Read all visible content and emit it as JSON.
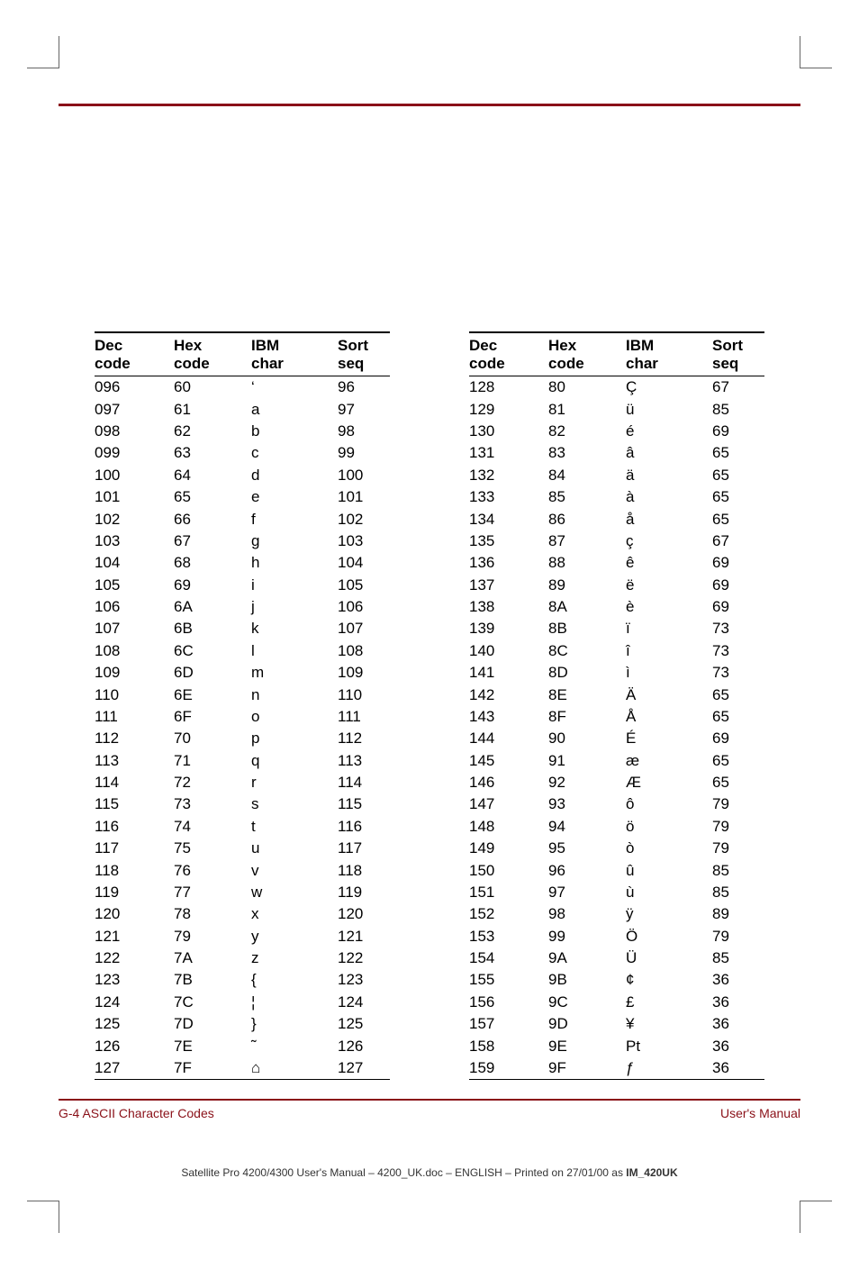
{
  "headers": {
    "dec": "Dec\ncode",
    "hex": "Hex\ncode",
    "char": "IBM\nchar",
    "seq": "Sort\nseq"
  },
  "table_left": {
    "rows": [
      {
        "dec": "096",
        "hex": "60",
        "char": "‘",
        "seq": "96"
      },
      {
        "dec": "097",
        "hex": "61",
        "char": "a",
        "seq": "97"
      },
      {
        "dec": "098",
        "hex": "62",
        "char": "b",
        "seq": "98"
      },
      {
        "dec": "099",
        "hex": "63",
        "char": "c",
        "seq": "99"
      },
      {
        "dec": "100",
        "hex": "64",
        "char": "d",
        "seq": "100"
      },
      {
        "dec": "101",
        "hex": "65",
        "char": "e",
        "seq": "101"
      },
      {
        "dec": "102",
        "hex": "66",
        "char": "f",
        "seq": "102"
      },
      {
        "dec": "103",
        "hex": "67",
        "char": "g",
        "seq": "103"
      },
      {
        "dec": "104",
        "hex": "68",
        "char": "h",
        "seq": "104"
      },
      {
        "dec": "105",
        "hex": "69",
        "char": "i",
        "seq": "105"
      },
      {
        "dec": "106",
        "hex": "6A",
        "char": "j",
        "seq": "106"
      },
      {
        "dec": "107",
        "hex": "6B",
        "char": "k",
        "seq": "107"
      },
      {
        "dec": "108",
        "hex": "6C",
        "char": "l",
        "seq": "108"
      },
      {
        "dec": "109",
        "hex": "6D",
        "char": "m",
        "seq": "109"
      },
      {
        "dec": "110",
        "hex": "6E",
        "char": "n",
        "seq": "110"
      },
      {
        "dec": "111",
        "hex": "6F",
        "char": "o",
        "seq": "111"
      },
      {
        "dec": "112",
        "hex": "70",
        "char": "p",
        "seq": "112"
      },
      {
        "dec": "113",
        "hex": "71",
        "char": "q",
        "seq": "113"
      },
      {
        "dec": "114",
        "hex": "72",
        "char": "r",
        "seq": "114"
      },
      {
        "dec": "115",
        "hex": "73",
        "char": "s",
        "seq": "115"
      },
      {
        "dec": "116",
        "hex": "74",
        "char": "t",
        "seq": "116"
      },
      {
        "dec": "117",
        "hex": "75",
        "char": "u",
        "seq": "117"
      },
      {
        "dec": "118",
        "hex": "76",
        "char": "v",
        "seq": "118"
      },
      {
        "dec": "119",
        "hex": "77",
        "char": "w",
        "seq": "119"
      },
      {
        "dec": "120",
        "hex": "78",
        "char": "x",
        "seq": "120"
      },
      {
        "dec": "121",
        "hex": "79",
        "char": "y",
        "seq": "121"
      },
      {
        "dec": "122",
        "hex": "7A",
        "char": "z",
        "seq": "122"
      },
      {
        "dec": "123",
        "hex": "7B",
        "char": "{",
        "seq": "123"
      },
      {
        "dec": "124",
        "hex": "7C",
        "char": "¦",
        "seq": "124"
      },
      {
        "dec": "125",
        "hex": "7D",
        "char": "}",
        "seq": "125"
      },
      {
        "dec": "126",
        "hex": "7E",
        "char": "˜",
        "seq": "126"
      },
      {
        "dec": "127",
        "hex": "7F",
        "char": "⌂",
        "seq": "127"
      }
    ]
  },
  "table_right": {
    "rows": [
      {
        "dec": "128",
        "hex": "80",
        "char": "Ç",
        "seq": "67"
      },
      {
        "dec": "129",
        "hex": "81",
        "char": "ü",
        "seq": "85"
      },
      {
        "dec": "130",
        "hex": "82",
        "char": "é",
        "seq": "69"
      },
      {
        "dec": "131",
        "hex": "83",
        "char": "â",
        "seq": "65"
      },
      {
        "dec": "132",
        "hex": "84",
        "char": "ä",
        "seq": "65"
      },
      {
        "dec": "133",
        "hex": "85",
        "char": "à",
        "seq": "65"
      },
      {
        "dec": "134",
        "hex": "86",
        "char": "å",
        "seq": "65"
      },
      {
        "dec": "135",
        "hex": "87",
        "char": "ç",
        "seq": "67"
      },
      {
        "dec": "136",
        "hex": "88",
        "char": "ê",
        "seq": "69"
      },
      {
        "dec": "137",
        "hex": "89",
        "char": "ë",
        "seq": "69"
      },
      {
        "dec": "138",
        "hex": "8A",
        "char": "è",
        "seq": "69"
      },
      {
        "dec": "139",
        "hex": "8B",
        "char": "ï",
        "seq": "73"
      },
      {
        "dec": "140",
        "hex": "8C",
        "char": "î",
        "seq": "73"
      },
      {
        "dec": "141",
        "hex": "8D",
        "char": "ì",
        "seq": "73"
      },
      {
        "dec": "142",
        "hex": "8E",
        "char": "Ä",
        "seq": "65"
      },
      {
        "dec": "143",
        "hex": "8F",
        "char": "Å",
        "seq": "65"
      },
      {
        "dec": "144",
        "hex": "90",
        "char": "É",
        "seq": "69"
      },
      {
        "dec": "145",
        "hex": "91",
        "char": "æ",
        "seq": "65"
      },
      {
        "dec": "146",
        "hex": "92",
        "char": "Æ",
        "seq": "65"
      },
      {
        "dec": "147",
        "hex": "93",
        "char": "ô",
        "seq": "79"
      },
      {
        "dec": "148",
        "hex": "94",
        "char": "ö",
        "seq": "79"
      },
      {
        "dec": "149",
        "hex": "95",
        "char": "ò",
        "seq": "79"
      },
      {
        "dec": "150",
        "hex": "96",
        "char": "û",
        "seq": "85"
      },
      {
        "dec": "151",
        "hex": "97",
        "char": "ù",
        "seq": "85"
      },
      {
        "dec": "152",
        "hex": "98",
        "char": "ÿ",
        "seq": "89"
      },
      {
        "dec": "153",
        "hex": "99",
        "char": "Ö",
        "seq": "79"
      },
      {
        "dec": "154",
        "hex": "9A",
        "char": "Ü",
        "seq": "85"
      },
      {
        "dec": "155",
        "hex": "9B",
        "char": "¢",
        "seq": "36"
      },
      {
        "dec": "156",
        "hex": "9C",
        "char": "£",
        "seq": "36"
      },
      {
        "dec": "157",
        "hex": "9D",
        "char": "¥",
        "seq": "36"
      },
      {
        "dec": "158",
        "hex": "9E",
        "char": "Pt",
        "seq": "36"
      },
      {
        "dec": "159",
        "hex": "9F",
        "char": "ƒ",
        "seq": "36"
      }
    ]
  },
  "footer": {
    "left": "G-4  ASCII Character Codes",
    "right": "User's Manual"
  },
  "print_line": {
    "prefix": "Satellite Pro 4200/4300 User's Manual  – 4200_UK.doc – ENGLISH – Printed on 27/01/00 as ",
    "bold": "IM_420UK"
  }
}
